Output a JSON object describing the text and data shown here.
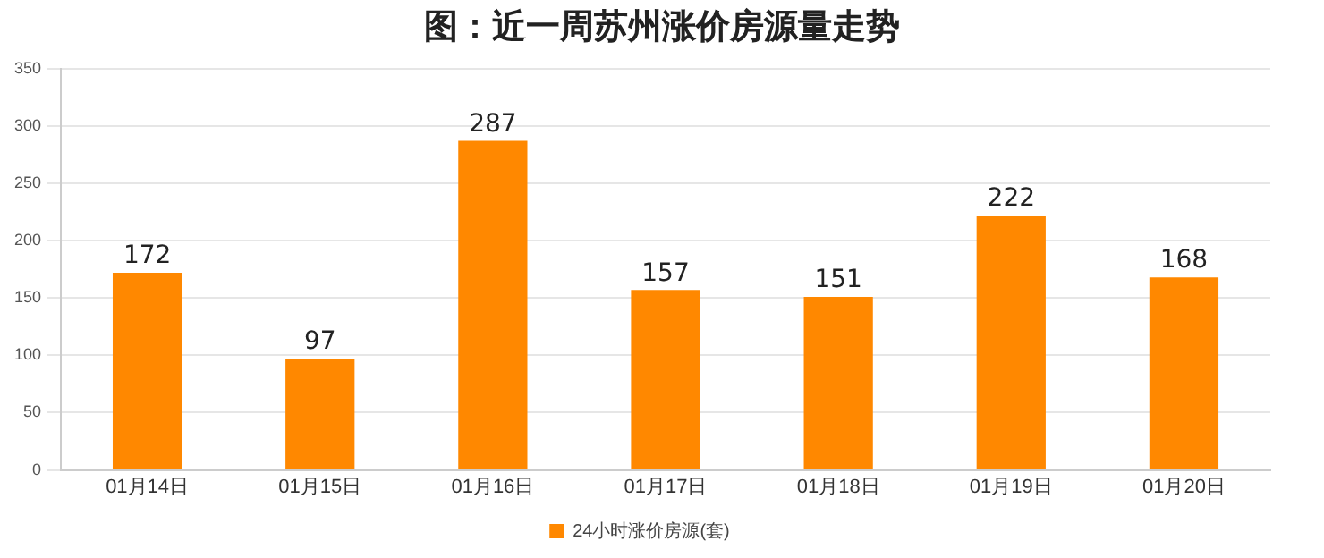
{
  "chart_data": {
    "type": "bar",
    "title": "图：近一周苏州涨价房源量走势",
    "categories": [
      "01月14日",
      "01月15日",
      "01月16日",
      "01月17日",
      "01月18日",
      "01月19日",
      "01月20日"
    ],
    "series": [
      {
        "name": "24小时涨价房源(套)",
        "color": "#ff8800",
        "values": [
          172,
          97,
          287,
          157,
          151,
          222,
          168
        ]
      }
    ],
    "ylim": [
      0,
      350
    ],
    "yticks": [
      0,
      50,
      100,
      150,
      200,
      250,
      300,
      350
    ],
    "grid": "y",
    "legend": "bottom",
    "data_labels": true
  }
}
